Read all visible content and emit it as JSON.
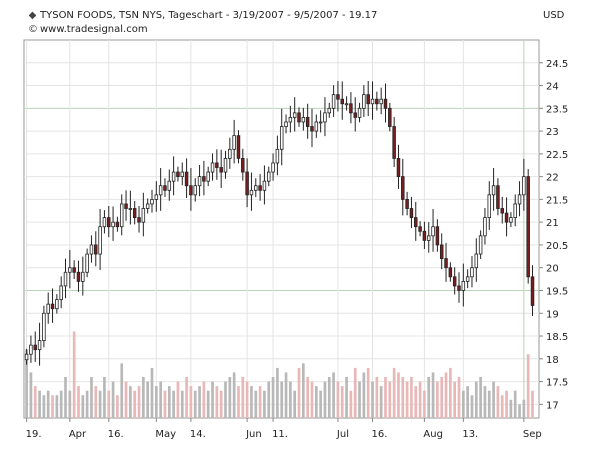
{
  "header": {
    "title": "TYSON FOODS, TSN NYS, Tageschart - 3/19/2007 - 9/5/2007 - 19.17",
    "title_icon": "diamond-icon",
    "source": "www.tradesignal.com",
    "source_icon": "copyright-icon",
    "currency": "USD"
  },
  "chart_data": {
    "type": "candlestick",
    "title": "TYSON FOODS, TSN NYS, Tageschart - 3/19/2007 - 9/5/2007 - 19.17",
    "ylabel": "USD",
    "ylim": [
      16.7,
      25.0
    ],
    "x_range": [
      -0.6,
      118.5
    ],
    "grid": true,
    "y_ticks": [
      17,
      17.5,
      18,
      18.5,
      19,
      19.5,
      20,
      20.5,
      21,
      21.5,
      22,
      22.5,
      23,
      23.5,
      24,
      24.5
    ],
    "y_tick_labels": [
      "17",
      "17.5",
      "18",
      "18.5",
      "19",
      "19.5",
      "20",
      "20.5",
      "21",
      "21.5",
      "22",
      "22.5",
      "23",
      "23.5",
      "24",
      "24.5"
    ],
    "x_ticks": [
      {
        "label": "19.",
        "index": 0
      },
      {
        "label": "Apr",
        "index": 10
      },
      {
        "label": "16.",
        "index": 19
      },
      {
        "label": "May",
        "index": 30
      },
      {
        "label": "14.",
        "index": 38
      },
      {
        "label": "Jun",
        "index": 51
      },
      {
        "label": "11.",
        "index": 57
      },
      {
        "label": "Jul",
        "index": 72
      },
      {
        "label": "16.",
        "index": 80
      },
      {
        "label": "Aug",
        "index": 92
      },
      {
        "label": "13.",
        "index": 101
      },
      {
        "label": "Sep",
        "index": 115
      }
    ],
    "colors": {
      "up": "#ffffff",
      "down": "#7a1f1f",
      "outline": "#222222",
      "grid_minor": "#e4e4e4",
      "grid_major": "#b9d2b9",
      "volume_up": "#b8b8b8",
      "volume_down": "#e8b8b8"
    },
    "close": [
      18.1,
      18.3,
      18.2,
      18.4,
      19.0,
      19.2,
      19.1,
      19.3,
      19.6,
      19.9,
      20.0,
      19.9,
      19.7,
      19.9,
      20.3,
      20.5,
      20.3,
      20.9,
      21.1,
      20.9,
      21.0,
      20.9,
      21.4,
      21.3,
      21.3,
      21.1,
      21.0,
      21.3,
      21.4,
      21.5,
      21.6,
      21.8,
      21.7,
      21.9,
      22.1,
      22.0,
      22.1,
      21.8,
      21.6,
      21.8,
      22.0,
      21.9,
      22.1,
      22.3,
      22.2,
      22.1,
      22.4,
      22.6,
      22.9,
      22.4,
      22.1,
      21.6,
      21.7,
      21.8,
      21.7,
      21.9,
      22.1,
      22.3,
      22.6,
      23.1,
      23.2,
      23.3,
      23.4,
      23.2,
      23.3,
      23.1,
      23.0,
      23.2,
      23.2,
      23.4,
      23.5,
      23.8,
      23.7,
      23.6,
      23.6,
      23.4,
      23.3,
      23.5,
      23.8,
      23.6,
      23.7,
      23.6,
      23.7,
      23.5,
      23.1,
      22.4,
      22.0,
      21.5,
      21.3,
      21.1,
      20.9,
      20.8,
      20.6,
      20.7,
      20.9,
      20.5,
      20.2,
      20.0,
      19.8,
      19.6,
      19.5,
      19.7,
      19.8,
      20.0,
      20.3,
      20.7,
      21.1,
      21.6,
      21.8,
      21.3,
      21.2,
      21.0,
      21.1,
      21.4,
      21.6,
      22.0,
      19.8,
      19.17
    ],
    "volume": [
      18.2,
      17.7,
      17.4,
      17.3,
      17.2,
      17.3,
      17.2,
      17.2,
      17.3,
      17.6,
      17.3,
      18.6,
      17.4,
      17.2,
      17.3,
      17.6,
      17.4,
      17.3,
      17.6,
      17.3,
      17.5,
      17.2,
      17.9,
      17.5,
      17.4,
      17.3,
      17.4,
      17.6,
      17.5,
      17.8,
      17.4,
      17.5,
      17.3,
      17.4,
      17.3,
      17.5,
      17.3,
      17.6,
      17.4,
      17.3,
      17.4,
      17.5,
      17.3,
      17.5,
      17.4,
      17.3,
      17.5,
      17.6,
      17.7,
      17.4,
      17.6,
      17.5,
      17.4,
      17.3,
      17.4,
      17.3,
      17.5,
      17.6,
      17.8,
      17.5,
      17.7,
      17.5,
      17.3,
      17.8,
      17.9,
      17.6,
      17.5,
      17.4,
      17.3,
      17.5,
      17.6,
      17.7,
      17.5,
      17.4,
      17.6,
      17.3,
      17.8,
      17.5,
      17.7,
      17.8,
      17.5,
      17.6,
      17.4,
      17.6,
      17.5,
      17.8,
      17.7,
      17.6,
      17.5,
      17.6,
      17.4,
      17.5,
      17.3,
      17.6,
      17.7,
      17.5,
      17.6,
      17.7,
      17.8,
      17.5,
      17.6,
      17.3,
      17.4,
      17.2,
      17.5,
      17.6,
      17.4,
      17.3,
      17.5,
      17.4,
      17.2,
      17.3,
      17.1,
      17.3,
      17.0,
      17.1,
      18.1,
      17.3
    ]
  }
}
